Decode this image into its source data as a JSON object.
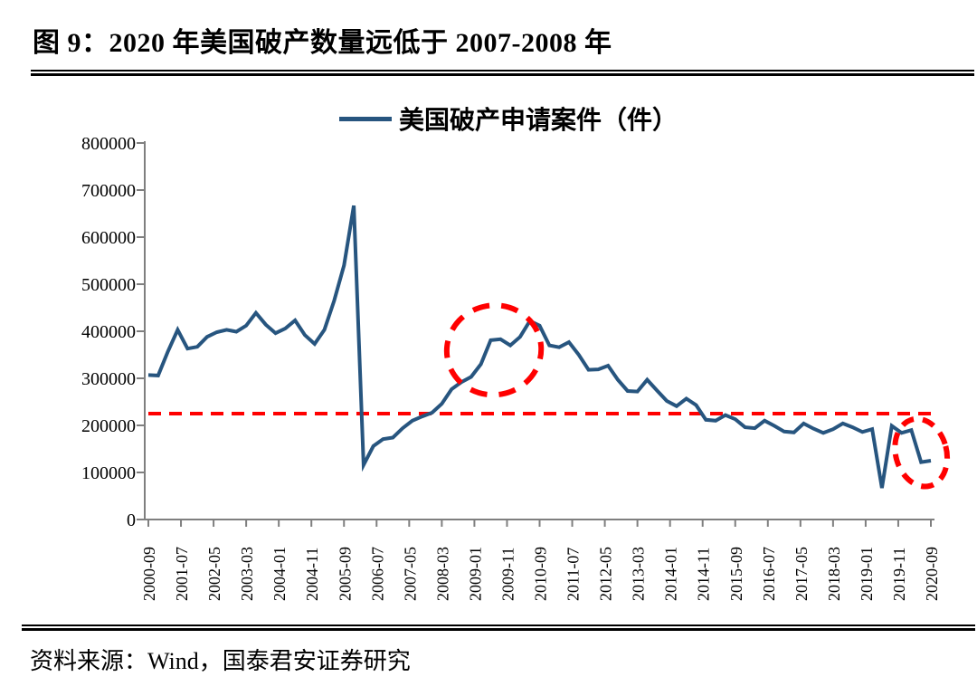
{
  "figure": {
    "title": "图 9：2020 年美国破产数量远低于 2007-2008 年",
    "source": "资料来源：Wind，国泰君安证券研究"
  },
  "legend": {
    "label": "美国破产申请案件（件）"
  },
  "colors": {
    "series": "#27557F",
    "annotation": "#FF0000",
    "axis": "#7F7F7F",
    "text": "#000000",
    "background": "#FFFFFF"
  },
  "chart_data": {
    "type": "line",
    "series_name": "美国破产申请案件（件）",
    "legend_position": "top-center",
    "grid": false,
    "ylim": [
      0,
      800000
    ],
    "y_ticks": [
      0,
      100000,
      200000,
      300000,
      400000,
      500000,
      600000,
      700000,
      800000
    ],
    "x_tick_labels": [
      "2000-09",
      "2001-07",
      "2002-05",
      "2003-03",
      "2004-01",
      "2004-11",
      "2005-09",
      "2006-07",
      "2007-05",
      "2008-03",
      "2009-01",
      "2009-11",
      "2010-09",
      "2011-07",
      "2012-05",
      "2013-03",
      "2014-01",
      "2014-11",
      "2015-09",
      "2016-07",
      "2017-05",
      "2018-03",
      "2019-01",
      "2019-11",
      "2020-09"
    ],
    "x": [
      "2000-09",
      "2000-12",
      "2001-03",
      "2001-06",
      "2001-09",
      "2001-12",
      "2002-03",
      "2002-06",
      "2002-09",
      "2002-12",
      "2003-03",
      "2003-06",
      "2003-09",
      "2003-12",
      "2004-03",
      "2004-06",
      "2004-09",
      "2004-12",
      "2005-03",
      "2005-06",
      "2005-09",
      "2005-12",
      "2006-03",
      "2006-06",
      "2006-09",
      "2006-12",
      "2007-03",
      "2007-06",
      "2007-09",
      "2007-12",
      "2008-03",
      "2008-06",
      "2008-09",
      "2008-12",
      "2009-03",
      "2009-06",
      "2009-09",
      "2009-12",
      "2010-03",
      "2010-06",
      "2010-09",
      "2010-12",
      "2011-03",
      "2011-06",
      "2011-09",
      "2011-12",
      "2012-03",
      "2012-06",
      "2012-09",
      "2012-12",
      "2013-03",
      "2013-06",
      "2013-09",
      "2013-12",
      "2014-03",
      "2014-06",
      "2014-09",
      "2014-12",
      "2015-03",
      "2015-06",
      "2015-09",
      "2015-12",
      "2016-03",
      "2016-06",
      "2016-09",
      "2016-12",
      "2017-03",
      "2017-06",
      "2017-09",
      "2017-12",
      "2018-03",
      "2018-06",
      "2018-09",
      "2018-12",
      "2019-03",
      "2019-06",
      "2019-09",
      "2019-12",
      "2020-03",
      "2020-06",
      "2020-09"
    ],
    "values": [
      307000,
      306000,
      357000,
      403000,
      363000,
      367000,
      388000,
      398000,
      403000,
      399000,
      412000,
      439000,
      414000,
      396000,
      406000,
      423000,
      392000,
      373000,
      403000,
      465000,
      540000,
      667000,
      116000,
      156000,
      171000,
      174000,
      194000,
      210000,
      219000,
      227000,
      246000,
      277000,
      292000,
      303000,
      330000,
      381000,
      383000,
      370000,
      388000,
      422000,
      412000,
      370000,
      366000,
      377000,
      350000,
      318000,
      319000,
      327000,
      297000,
      273000,
      272000,
      297000,
      274000,
      252000,
      241000,
      257000,
      243000,
      212000,
      210000,
      222000,
      213000,
      196000,
      194000,
      210000,
      199000,
      187000,
      185000,
      204000,
      193000,
      184000,
      192000,
      204000,
      196000,
      186000,
      192000,
      67000,
      199000,
      184000,
      190000,
      122000,
      125000
    ],
    "reference_line": {
      "value": 225000,
      "style": "dashed",
      "color": "#FF0000"
    },
    "annotations": [
      {
        "type": "ellipse",
        "note": "2009 bankruptcy peak highlighted",
        "center_date": "2009-07",
        "center_value": 360000,
        "rx_months": 14.5,
        "ry_value": 95000,
        "rotate": -10
      },
      {
        "type": "ellipse",
        "note": "2020 low level highlighted",
        "center_date": "2020-06",
        "center_value": 142000,
        "rx_months": 7.8,
        "ry_value": 73000,
        "rotate": -15
      }
    ]
  }
}
